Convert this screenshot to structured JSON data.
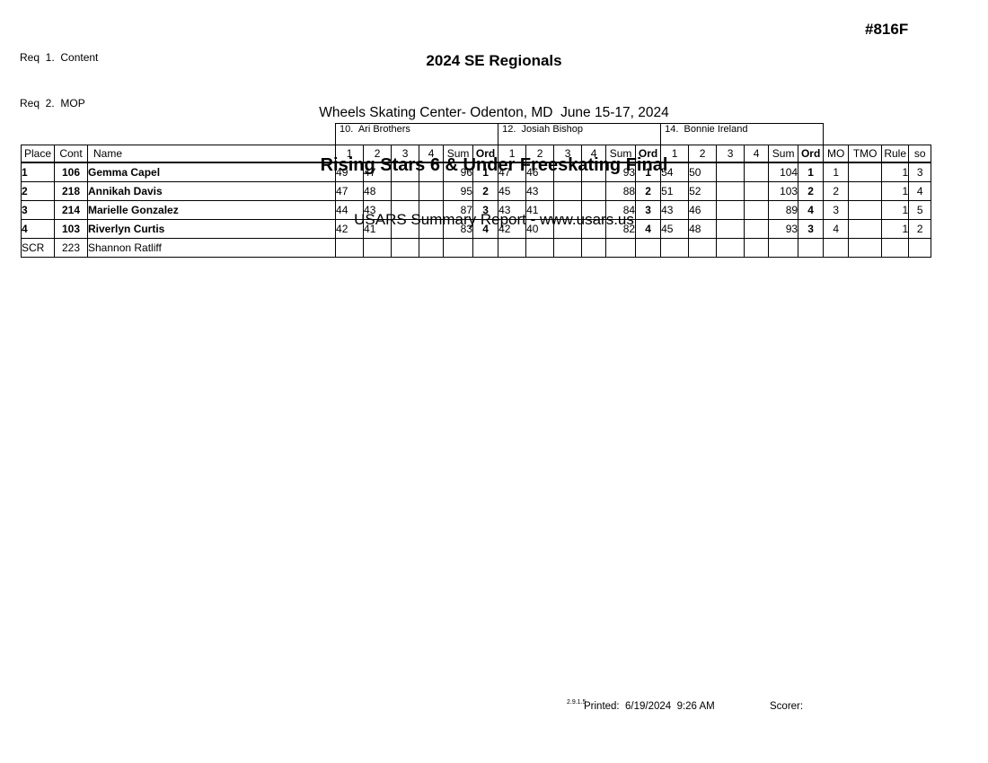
{
  "header": {
    "req_lines": [
      "Req  1.  Content",
      "Req  2.  MOP"
    ],
    "event_number": "#816F",
    "title": "2024 SE Regionals",
    "venue": "Wheels Skating Center- Odenton, MD  June 15-17, 2024",
    "event_title": "Rising Stars 6 & Under Freeskating Final",
    "report_line": "USARS Summary Report - www.usars.us"
  },
  "table": {
    "left_headers": [
      "Place",
      "Cont",
      "Name"
    ],
    "judges": [
      "10.  Ari Brothers",
      "12.  Josiah Bishop",
      "14.  Bonnie Ireland"
    ],
    "score_headers": [
      "1",
      "2",
      "3",
      "4",
      "Sum",
      "Ord"
    ],
    "right_headers": [
      "MO",
      "TMO",
      "Rule",
      "so"
    ],
    "rows": [
      {
        "place": "1",
        "cont": "106",
        "name": "Gemma Capel",
        "scr": false,
        "judges": [
          {
            "s": [
              "49",
              "47",
              "",
              ""
            ],
            "sum": "96",
            "ord": "1"
          },
          {
            "s": [
              "47",
              "46",
              "",
              ""
            ],
            "sum": "93",
            "ord": "1"
          },
          {
            "s": [
              "54",
              "50",
              "",
              ""
            ],
            "sum": "104",
            "ord": "1"
          }
        ],
        "mo": "1",
        "tmo": "",
        "rule": "1",
        "so": "3"
      },
      {
        "place": "2",
        "cont": "218",
        "name": "Annikah Davis",
        "scr": false,
        "judges": [
          {
            "s": [
              "47",
              "48",
              "",
              ""
            ],
            "sum": "95",
            "ord": "2"
          },
          {
            "s": [
              "45",
              "43",
              "",
              ""
            ],
            "sum": "88",
            "ord": "2"
          },
          {
            "s": [
              "51",
              "52",
              "",
              ""
            ],
            "sum": "103",
            "ord": "2"
          }
        ],
        "mo": "2",
        "tmo": "",
        "rule": "1",
        "so": "4"
      },
      {
        "place": "3",
        "cont": "214",
        "name": "Marielle Gonzalez",
        "scr": false,
        "judges": [
          {
            "s": [
              "44",
              "43",
              "",
              ""
            ],
            "sum": "87",
            "ord": "3"
          },
          {
            "s": [
              "43",
              "41",
              "",
              ""
            ],
            "sum": "84",
            "ord": "3"
          },
          {
            "s": [
              "43",
              "46",
              "",
              ""
            ],
            "sum": "89",
            "ord": "4"
          }
        ],
        "mo": "3",
        "tmo": "",
        "rule": "1",
        "so": "5"
      },
      {
        "place": "4",
        "cont": "103",
        "name": "Riverlyn Curtis",
        "scr": false,
        "judges": [
          {
            "s": [
              "42",
              "41",
              "",
              ""
            ],
            "sum": "83",
            "ord": "4"
          },
          {
            "s": [
              "42",
              "40",
              "",
              ""
            ],
            "sum": "82",
            "ord": "4"
          },
          {
            "s": [
              "45",
              "48",
              "",
              ""
            ],
            "sum": "93",
            "ord": "3"
          }
        ],
        "mo": "4",
        "tmo": "",
        "rule": "1",
        "so": "2"
      },
      {
        "place": "SCR",
        "cont": "223",
        "name": "Shannon Ratliff",
        "scr": true,
        "judges": [
          {
            "s": [
              "",
              "",
              "",
              ""
            ],
            "sum": "",
            "ord": ""
          },
          {
            "s": [
              "",
              "",
              "",
              ""
            ],
            "sum": "",
            "ord": ""
          },
          {
            "s": [
              "",
              "",
              "",
              ""
            ],
            "sum": "",
            "ord": ""
          }
        ],
        "mo": "",
        "tmo": "",
        "rule": "",
        "so": ""
      }
    ]
  },
  "footer": {
    "version": "2.9.1.5",
    "printed": "Printed:  6/19/2024  9:26 AM",
    "scorer": "Scorer:"
  }
}
